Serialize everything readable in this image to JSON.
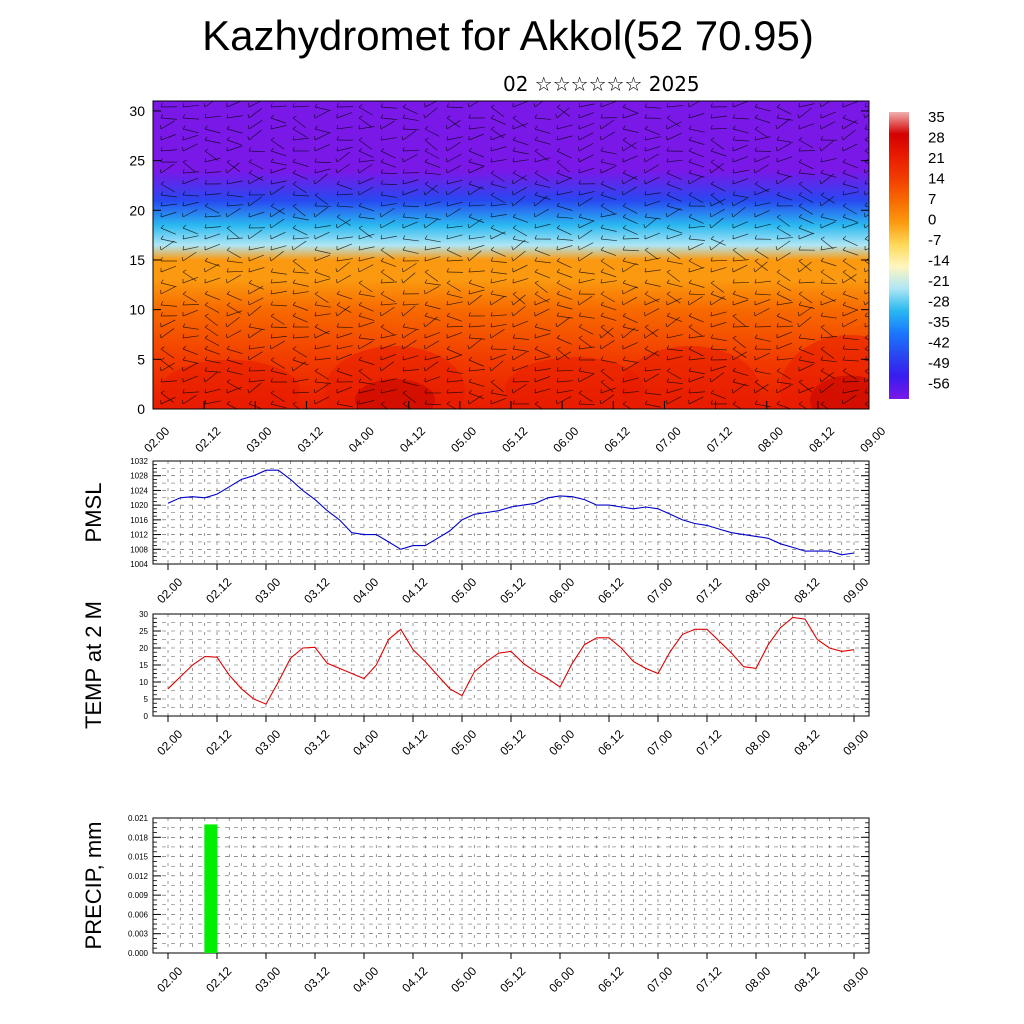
{
  "page": {
    "title": "Kazhydromet for Akkol(52 70.95)",
    "subtitle": "02 ☆☆☆☆☆☆ 2025"
  },
  "colors": {
    "pmsl_line": "#0000cc",
    "temp_line": "#dd0000",
    "precip_bar": "#00ee00",
    "grid": "#555555"
  },
  "time_ticks": [
    "02.00",
    "02.12",
    "03.00",
    "03.12",
    "04.00",
    "04.12",
    "05.00",
    "05.12",
    "06.00",
    "06.12",
    "07.00",
    "07.12",
    "08.00",
    "08.12",
    "09.00"
  ],
  "chart_data": [
    {
      "type": "heatmap",
      "name": "upper-air cross-section (temperature shading with wind barbs)",
      "title": "",
      "xlabel": "",
      "ylabel": "",
      "x_ticks": [
        "02.00",
        "02.12",
        "03.00",
        "03.12",
        "04.00",
        "04.12",
        "05.00",
        "05.12",
        "06.00",
        "06.12",
        "07.00",
        "07.12",
        "08.00",
        "08.12",
        "09.00"
      ],
      "y_ticks": [
        0,
        5,
        10,
        15,
        20,
        25,
        30
      ],
      "ylim": [
        0,
        31
      ],
      "colorbar_labels": [
        "35",
        "28",
        "21",
        "14",
        "7",
        "0",
        "-7",
        "-14",
        "-21",
        "-28",
        "-35",
        "-42",
        "-49",
        "-56"
      ],
      "colorbar_colors": [
        "#f0b0b0",
        "#d40000",
        "#e81c00",
        "#f23c00",
        "#f76a00",
        "#fb9a10",
        "#fed858",
        "#fff6c0",
        "#aee6f5",
        "#2ab8f0",
        "#1a78ff",
        "#2848f0",
        "#3a1af0",
        "#7a18e8"
      ],
      "temperature_profile": {
        "heights": [
          0,
          5,
          10,
          13,
          15,
          16.5,
          18.5,
          21,
          24,
          27,
          31
        ],
        "values": [
          26,
          20,
          12,
          5,
          0,
          -15,
          -28,
          -40,
          -50,
          -56,
          -52
        ]
      },
      "legend": "colorbar right"
    },
    {
      "type": "line",
      "ylabel": "PMSL",
      "xlabel": "",
      "title": "",
      "ylim": [
        1004,
        1032
      ],
      "y_ticks": [
        1004,
        1008,
        1012,
        1016,
        1020,
        1024,
        1028,
        1032
      ],
      "x_ticks": [
        "02.00",
        "02.12",
        "03.00",
        "03.12",
        "04.00",
        "04.12",
        "05.00",
        "05.12",
        "06.00",
        "06.12",
        "07.00",
        "07.12",
        "08.00",
        "08.12",
        "09.00"
      ],
      "x": [
        0,
        3,
        6,
        9,
        12,
        15,
        18,
        21,
        24,
        27,
        30,
        33,
        36,
        39,
        42,
        45,
        48,
        51,
        54,
        57,
        60,
        63,
        66,
        69,
        72,
        75,
        78,
        81,
        84,
        87,
        90,
        93,
        96,
        99,
        102,
        105,
        108,
        111,
        114,
        117,
        120,
        123,
        126,
        129,
        132,
        135,
        138,
        141,
        144,
        147,
        150,
        153,
        156,
        159,
        162,
        165,
        168
      ],
      "values": [
        1020.5,
        1022,
        1022.3,
        1022,
        1023,
        1025,
        1027,
        1028,
        1029.5,
        1029.5,
        1027,
        1024,
        1021.5,
        1018.5,
        1016,
        1012.5,
        1012,
        1012,
        1010,
        1008,
        1009,
        1009,
        1011,
        1013,
        1016,
        1017.5,
        1018,
        1018.5,
        1019.5,
        1020,
        1020.5,
        1022,
        1022.5,
        1022.3,
        1021.5,
        1020,
        1020,
        1019.5,
        1019,
        1019.5,
        1019,
        1017.5,
        1016,
        1015,
        1014.5,
        1013.5,
        1012.5,
        1012,
        1011.5,
        1011,
        1009.5,
        1008.5,
        1007.5,
        1007.5,
        1007.5,
        1006.5,
        1007
      ]
    },
    {
      "type": "line",
      "ylabel": "TEMP at 2 M",
      "xlabel": "",
      "title": "",
      "ylim": [
        0,
        30
      ],
      "y_ticks": [
        0,
        5,
        10,
        15,
        20,
        25,
        30
      ],
      "x_ticks": [
        "02.00",
        "02.12",
        "03.00",
        "03.12",
        "04.00",
        "04.12",
        "05.00",
        "05.12",
        "06.00",
        "06.12",
        "07.00",
        "07.12",
        "08.00",
        "08.12",
        "09.00"
      ],
      "x": [
        0,
        3,
        6,
        9,
        12,
        15,
        18,
        21,
        24,
        27,
        30,
        33,
        36,
        39,
        42,
        45,
        48,
        51,
        54,
        57,
        60,
        63,
        66,
        69,
        72,
        75,
        78,
        81,
        84,
        87,
        90,
        93,
        96,
        99,
        102,
        105,
        108,
        111,
        114,
        117,
        120,
        123,
        126,
        129,
        132,
        135,
        138,
        141,
        144,
        147,
        150,
        153,
        156,
        159,
        162,
        165,
        168
      ],
      "values": [
        8,
        11.5,
        15,
        17.5,
        17.3,
        12,
        8,
        5,
        3.5,
        10,
        17,
        20,
        20.2,
        15.5,
        14,
        12.5,
        11,
        15,
        22.5,
        25.5,
        19.5,
        16,
        12,
        8,
        6,
        13,
        16,
        18.5,
        19,
        15.5,
        13,
        11,
        8.5,
        15.5,
        21,
        23,
        23,
        20,
        16,
        14,
        12.5,
        19,
        24,
        25.5,
        25.5,
        22,
        18.5,
        14.5,
        14,
        21,
        26,
        29,
        28.5,
        22.5,
        20,
        19,
        19.5
      ]
    },
    {
      "type": "bar",
      "ylabel": "PRECIP, mm",
      "xlabel": "",
      "title": "",
      "ylim": [
        0,
        0.021
      ],
      "y_ticks": [
        "0.000",
        "0.003",
        "0.006",
        "0.009",
        "0.012",
        "0.015",
        "0.018",
        "0.021"
      ],
      "x_ticks": [
        "02.00",
        "02.12",
        "03.00",
        "03.12",
        "04.00",
        "04.12",
        "05.00",
        "05.12",
        "06.00",
        "06.12",
        "07.00",
        "07.12",
        "08.00",
        "08.12",
        "09.00"
      ],
      "x": [
        10.5
      ],
      "values": [
        0.02
      ]
    }
  ]
}
